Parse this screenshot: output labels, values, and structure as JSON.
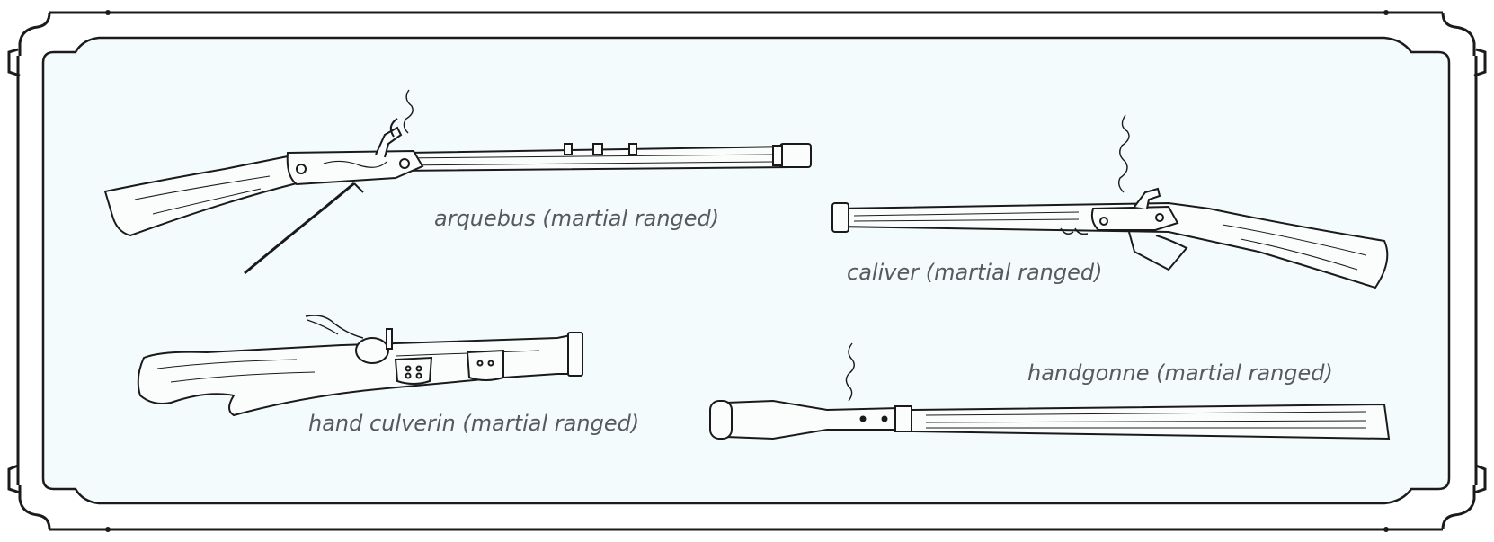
{
  "panel": {
    "background_color": "#f4fbfc",
    "border_color": "#1b1b1b"
  },
  "weapons": [
    {
      "id": "arquebus",
      "caption": "arquebus (martial ranged)",
      "icon": "arquebus-icon"
    },
    {
      "id": "caliver",
      "caption": "caliver (martial ranged)",
      "icon": "caliver-icon"
    },
    {
      "id": "hand-culverin",
      "caption": "hand culverin (martial ranged)",
      "icon": "hand-culverin-icon"
    },
    {
      "id": "handgonne",
      "caption": "handgonne (martial ranged)",
      "icon": "handgonne-icon"
    }
  ]
}
